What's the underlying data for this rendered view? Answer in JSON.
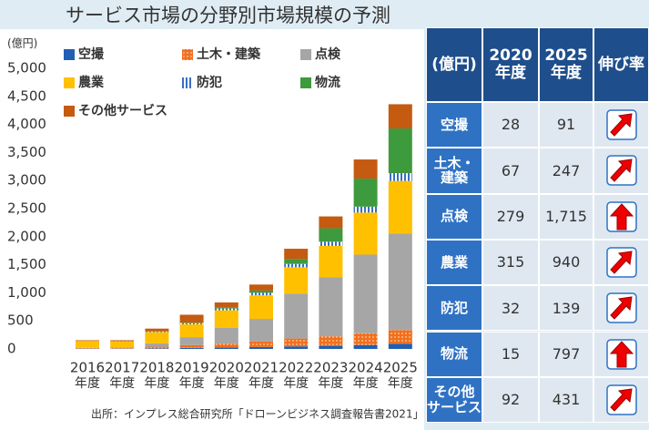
{
  "chart_data": {
    "type": "stacked_bar",
    "title": "サービス市場の分野別市場規模の予測",
    "unit_label": "(億円)",
    "categories": [
      "2016",
      "2017",
      "2018",
      "2019",
      "2020",
      "2021",
      "2022",
      "2023",
      "2024",
      "2025"
    ],
    "category_suffix": "年度",
    "series": [
      {
        "name": "空撮",
        "color": "#1f5fb4",
        "values": [
          5,
          5,
          10,
          20,
          28,
          35,
          45,
          55,
          70,
          91
        ]
      },
      {
        "name": "土木・建築",
        "color": "#f07020",
        "pattern": "dots",
        "values": [
          10,
          10,
          30,
          50,
          67,
          100,
          140,
          170,
          210,
          247
        ]
      },
      {
        "name": "点検",
        "color": "#a6a6a6",
        "values": [
          5,
          10,
          60,
          140,
          279,
          400,
          800,
          1050,
          1400,
          1715
        ]
      },
      {
        "name": "農業",
        "color": "#ffc000",
        "values": [
          120,
          110,
          200,
          230,
          315,
          420,
          470,
          560,
          750,
          940
        ]
      },
      {
        "name": "防犯",
        "color": "#3a6fc0",
        "pattern": "stripes",
        "values": [
          2,
          3,
          10,
          20,
          32,
          45,
          60,
          75,
          105,
          139
        ]
      },
      {
        "name": "物流",
        "color": "#3d9a3d",
        "values": [
          0,
          0,
          2,
          10,
          15,
          40,
          90,
          240,
          500,
          797
        ]
      },
      {
        "name": "その他サービス",
        "color": "#c55a11",
        "values": [
          12,
          17,
          50,
          139,
          92,
          107,
          180,
          211,
          341,
          431
        ]
      }
    ],
    "ylim": [
      0,
      5000
    ],
    "yticks": [
      0,
      500,
      {
        "value": 1000,
        "label": "1,000"
      },
      {
        "value": 1500,
        "label": "1,500"
      },
      {
        "value": 2000,
        "label": "2,000"
      },
      {
        "value": 2500,
        "label": "2,500"
      },
      {
        "value": 3000,
        "label": "3,000"
      },
      {
        "value": 3500,
        "label": "3,500"
      },
      {
        "value": 4000,
        "label": "4,000"
      },
      {
        "value": 4500,
        "label": "4,500"
      },
      {
        "value": 5000,
        "label": "5,000"
      }
    ],
    "source": "出所：インプレス総合研究所「ドローンビジネス調査報告書2021」"
  },
  "table": {
    "header": [
      "(億円)",
      "2020\n年度",
      "2025\n年度",
      "伸び率"
    ],
    "rows": [
      [
        "空撮",
        "28",
        "91"
      ],
      [
        "土木・\n建築",
        "67",
        "247"
      ],
      [
        "点検",
        "279",
        "1,715"
      ],
      [
        "農業",
        "315",
        "940"
      ],
      [
        "防犯",
        "32",
        "139"
      ],
      [
        "物流",
        "15",
        "797"
      ],
      [
        "その他\nサービス",
        "92",
        "431"
      ]
    ]
  }
}
